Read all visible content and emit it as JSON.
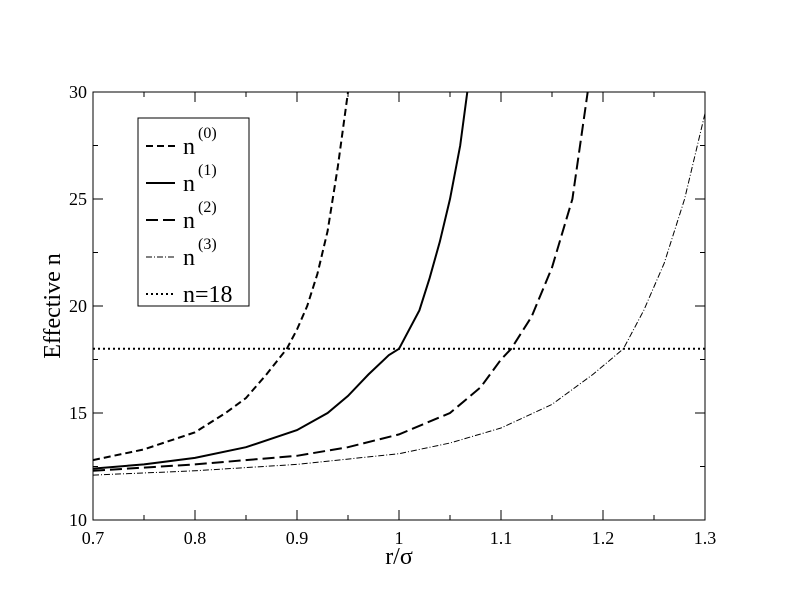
{
  "chart_data": {
    "type": "line",
    "title": "",
    "xlabel": "r/σ",
    "ylabel": "Effective n",
    "xlim": [
      0.7,
      1.3
    ],
    "ylim": [
      10,
      30
    ],
    "xticks": [
      "0.7",
      "0.8",
      "0.9",
      "1",
      "1.1",
      "1.2",
      "1.3"
    ],
    "yticks": [
      "10",
      "15",
      "20",
      "25",
      "30"
    ],
    "grid": false,
    "legend_position": "top-left",
    "series": [
      {
        "name": "n",
        "superscript": "(0)",
        "style": "dashed",
        "points": [
          [
            0.7,
            12.8
          ],
          [
            0.75,
            13.3
          ],
          [
            0.8,
            14.1
          ],
          [
            0.83,
            15.0
          ],
          [
            0.85,
            15.7
          ],
          [
            0.87,
            16.8
          ],
          [
            0.88,
            17.4
          ],
          [
            0.89,
            18.0
          ],
          [
            0.9,
            18.9
          ],
          [
            0.91,
            20.0
          ],
          [
            0.92,
            21.5
          ],
          [
            0.93,
            23.5
          ],
          [
            0.94,
            26.5
          ],
          [
            0.95,
            30.0
          ]
        ]
      },
      {
        "name": "n",
        "superscript": "(1)",
        "style": "solid",
        "points": [
          [
            0.7,
            12.4
          ],
          [
            0.75,
            12.6
          ],
          [
            0.8,
            12.9
          ],
          [
            0.85,
            13.4
          ],
          [
            0.9,
            14.2
          ],
          [
            0.93,
            15.0
          ],
          [
            0.95,
            15.8
          ],
          [
            0.97,
            16.8
          ],
          [
            0.99,
            17.7
          ],
          [
            1.0,
            18.0
          ],
          [
            1.02,
            19.8
          ],
          [
            1.03,
            21.3
          ],
          [
            1.04,
            23.0
          ],
          [
            1.05,
            25.0
          ],
          [
            1.06,
            27.5
          ],
          [
            1.067,
            30.0
          ]
        ]
      },
      {
        "name": "n",
        "superscript": "(2)",
        "style": "long-dashed",
        "points": [
          [
            0.7,
            12.3
          ],
          [
            0.8,
            12.6
          ],
          [
            0.9,
            13.0
          ],
          [
            0.95,
            13.4
          ],
          [
            1.0,
            14.0
          ],
          [
            1.05,
            15.0
          ],
          [
            1.08,
            16.2
          ],
          [
            1.1,
            17.5
          ],
          [
            1.11,
            18.0
          ],
          [
            1.13,
            19.5
          ],
          [
            1.15,
            21.8
          ],
          [
            1.17,
            25.0
          ],
          [
            1.185,
            30.0
          ]
        ]
      },
      {
        "name": "n",
        "superscript": "(3)",
        "style": "dash-dot",
        "points": [
          [
            0.7,
            12.1
          ],
          [
            0.8,
            12.3
          ],
          [
            0.9,
            12.6
          ],
          [
            1.0,
            13.1
          ],
          [
            1.05,
            13.6
          ],
          [
            1.1,
            14.3
          ],
          [
            1.15,
            15.4
          ],
          [
            1.19,
            16.8
          ],
          [
            1.22,
            18.0
          ],
          [
            1.24,
            19.8
          ],
          [
            1.26,
            22.0
          ],
          [
            1.28,
            25.0
          ],
          [
            1.3,
            29.0
          ]
        ]
      },
      {
        "name": "n=18",
        "superscript": "",
        "style": "dotted",
        "points": [
          [
            0.7,
            18.0
          ],
          [
            1.3,
            18.0
          ]
        ]
      }
    ]
  }
}
